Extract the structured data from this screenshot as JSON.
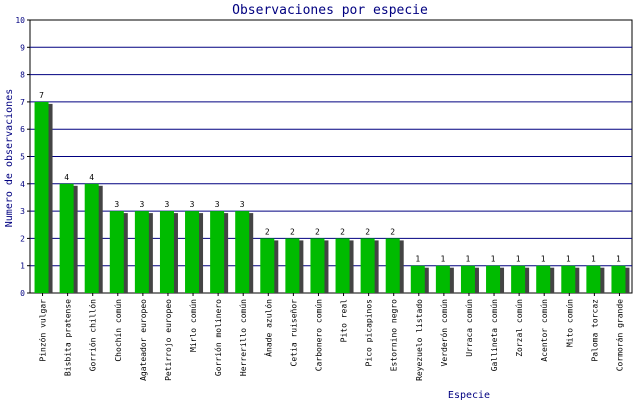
{
  "chart_data": {
    "type": "bar",
    "title": "Observaciones por especie",
    "xlabel": "Especie",
    "ylabel": "Numero de observaciones",
    "ylim": [
      0,
      10
    ],
    "yticks": [
      0,
      1,
      2,
      3,
      4,
      5,
      6,
      7,
      8,
      9,
      10
    ],
    "grid": true,
    "categories": [
      "Pinzón vulgar",
      "Bisbita pratense",
      "Gorrión chillón",
      "Chochín común",
      "Agateador europeo",
      "Petirrojo europeo",
      "Mirlo común",
      "Gorrión molinero",
      "Herrerillo común",
      "Ánade azulón",
      "Cetia ruiseñor",
      "Carbonero común",
      "Pito real",
      "Pico picapinos",
      "Estornino negro",
      "Reyezuelo listado",
      "Verderón común",
      "Urraca común",
      "Gallineta común",
      "Zorzal común",
      "Acentor común",
      "Mito común",
      "Paloma torcaz",
      "Cormorán grande"
    ],
    "values": [
      7,
      4,
      4,
      3,
      3,
      3,
      3,
      3,
      3,
      2,
      2,
      2,
      2,
      2,
      2,
      1,
      1,
      1,
      1,
      1,
      1,
      1,
      1,
      1
    ],
    "colors": {
      "bar": "#00bb00",
      "shadow": "#444444",
      "grid": "#000080",
      "axis": "#000000",
      "text": "#000080",
      "label": "#000000"
    }
  }
}
